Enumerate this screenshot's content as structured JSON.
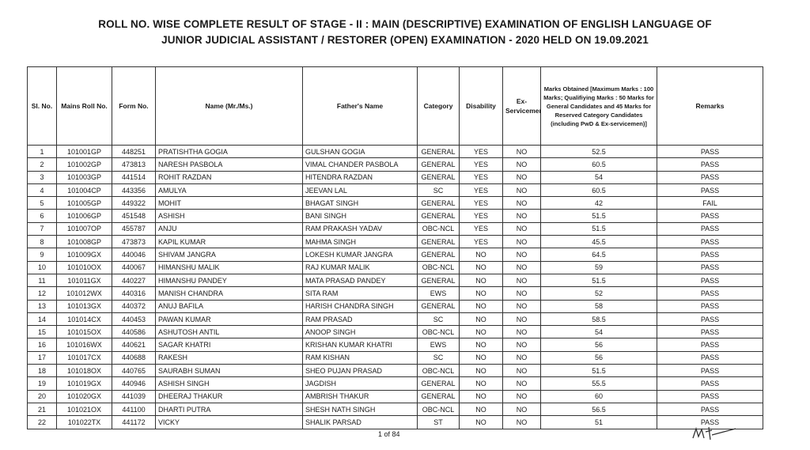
{
  "title_line1": "ROLL NO. WISE COMPLETE RESULT OF STAGE - II : MAIN (DESCRIPTIVE) EXAMINATION OF ENGLISH LANGUAGE OF",
  "title_line2": "JUNIOR JUDICIAL ASSISTANT / RESTORER (OPEN) EXAMINATION - 2020 HELD ON 19.09.2021",
  "headers": {
    "sl": "Sl. No.",
    "roll": "Mains Roll No.",
    "form": "Form No.",
    "name": "Name (Mr./Ms.)",
    "father": "Father's Name",
    "category": "Category",
    "disability": "Disability",
    "ex": "Ex-Servicemen",
    "marks": "Marks Obtained [Maximum Marks : 100 Marks; Qualifiying Marks : 50 Marks for General Candidates and 45 Marks for Reserved Category Candidates (including PwD & Ex-servicemen)]",
    "remarks": "Remarks"
  },
  "rows": [
    [
      "1",
      "101001GP",
      "448251",
      "PRATISHTHA GOGIA",
      "GULSHAN GOGIA",
      "GENERAL",
      "YES",
      "NO",
      "52.5",
      "PASS"
    ],
    [
      "2",
      "101002GP",
      "473813",
      "NARESH PASBOLA",
      "VIMAL CHANDER PASBOLA",
      "GENERAL",
      "YES",
      "NO",
      "60.5",
      "PASS"
    ],
    [
      "3",
      "101003GP",
      "441514",
      "ROHIT RAZDAN",
      "HITENDRA RAZDAN",
      "GENERAL",
      "YES",
      "NO",
      "54",
      "PASS"
    ],
    [
      "4",
      "101004CP",
      "443356",
      "AMULYA",
      "JEEVAN LAL",
      "SC",
      "YES",
      "NO",
      "60.5",
      "PASS"
    ],
    [
      "5",
      "101005GP",
      "449322",
      "MOHIT",
      "BHAGAT SINGH",
      "GENERAL",
      "YES",
      "NO",
      "42",
      "FAIL"
    ],
    [
      "6",
      "101006GP",
      "451548",
      "ASHISH",
      "BANI SINGH",
      "GENERAL",
      "YES",
      "NO",
      "51.5",
      "PASS"
    ],
    [
      "7",
      "101007OP",
      "455787",
      "ANJU",
      "RAM PRAKASH YADAV",
      "OBC-NCL",
      "YES",
      "NO",
      "51.5",
      "PASS"
    ],
    [
      "8",
      "101008GP",
      "473873",
      "KAPIL KUMAR",
      "MAHMA SINGH",
      "GENERAL",
      "YES",
      "NO",
      "45.5",
      "PASS"
    ],
    [
      "9",
      "101009GX",
      "440046",
      "SHIVAM JANGRA",
      "LOKESH KUMAR JANGRA",
      "GENERAL",
      "NO",
      "NO",
      "64.5",
      "PASS"
    ],
    [
      "10",
      "101010OX",
      "440067",
      "HIMANSHU MALIK",
      "RAJ KUMAR MALIK",
      "OBC-NCL",
      "NO",
      "NO",
      "59",
      "PASS"
    ],
    [
      "11",
      "101011GX",
      "440227",
      "HIMANSHU PANDEY",
      "MATA PRASAD PANDEY",
      "GENERAL",
      "NO",
      "NO",
      "51.5",
      "PASS"
    ],
    [
      "12",
      "101012WX",
      "440316",
      "MANISH  CHANDRA",
      "SITA  RAM",
      "EWS",
      "NO",
      "NO",
      "52",
      "PASS"
    ],
    [
      "13",
      "101013GX",
      "440372",
      "ANUJ BAFILA",
      "HARISH CHANDRA SINGH",
      "GENERAL",
      "NO",
      "NO",
      "58",
      "PASS"
    ],
    [
      "14",
      "101014CX",
      "440453",
      "PAWAN KUMAR",
      "RAM PRASAD",
      "SC",
      "NO",
      "NO",
      "58.5",
      "PASS"
    ],
    [
      "15",
      "101015OX",
      "440586",
      "ASHUTOSH ANTIL",
      "ANOOP SINGH",
      "OBC-NCL",
      "NO",
      "NO",
      "54",
      "PASS"
    ],
    [
      "16",
      "101016WX",
      "440621",
      "SAGAR KHATRI",
      "KRISHAN KUMAR KHATRI",
      "EWS",
      "NO",
      "NO",
      "56",
      "PASS"
    ],
    [
      "17",
      "101017CX",
      "440688",
      "RAKESH",
      "RAM KISHAN",
      "SC",
      "NO",
      "NO",
      "56",
      "PASS"
    ],
    [
      "18",
      "101018OX",
      "440765",
      "SAURABH SUMAN",
      "SHEO PUJAN PRASAD",
      "OBC-NCL",
      "NO",
      "NO",
      "51.5",
      "PASS"
    ],
    [
      "19",
      "101019GX",
      "440946",
      "ASHISH SINGH",
      "JAGDISH",
      "GENERAL",
      "NO",
      "NO",
      "55.5",
      "PASS"
    ],
    [
      "20",
      "101020GX",
      "441039",
      "DHEERAJ THAKUR",
      "AMBRISH THAKUR",
      "GENERAL",
      "NO",
      "NO",
      "60",
      "PASS"
    ],
    [
      "21",
      "101021OX",
      "441100",
      "DHARTI PUTRA",
      "SHESH NATH SINGH",
      "OBC-NCL",
      "NO",
      "NO",
      "56.5",
      "PASS"
    ],
    [
      "22",
      "101022TX",
      "441172",
      "VICKY",
      "SHALIK PARSAD",
      "ST",
      "NO",
      "NO",
      "51",
      "PASS"
    ]
  ],
  "footer": "1 of 84"
}
